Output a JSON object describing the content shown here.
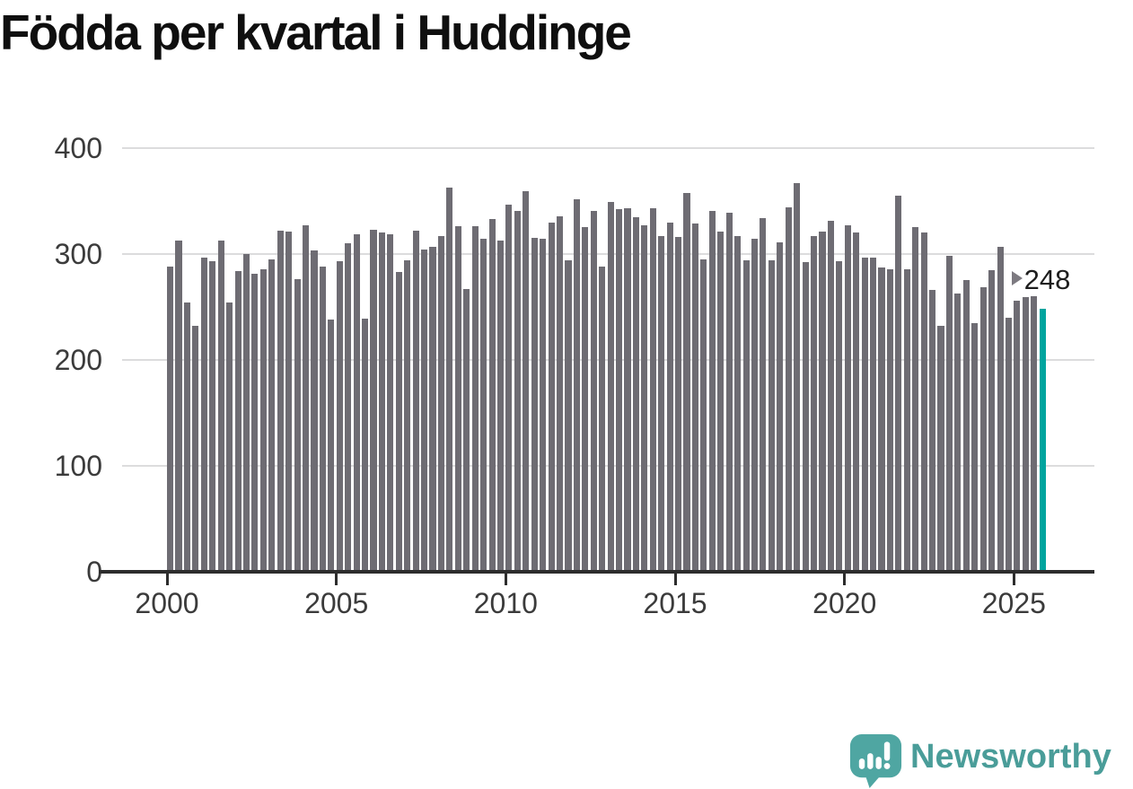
{
  "title": "Födda per kvartal i Huddinge",
  "annotation": {
    "text": "248",
    "arrow_icon": "right-arrowhead"
  },
  "footer": {
    "brand": "Newsworthy",
    "logo_icon": "newsworthy-speech-bubble-bar-chart-icon"
  },
  "colors": {
    "bar": "#6e6c73",
    "highlight": "#00a49e",
    "gridline": "#dcdcdd",
    "axis": "#2d2d2d",
    "title_text": "#0f0f0f",
    "tick_text": "#3b3b3b",
    "brand_teal": "#4a9d99",
    "logo_fill": "#4fa6a2"
  },
  "chart_data": {
    "type": "bar",
    "title": "Födda per kvartal i Huddinge",
    "x": {
      "start": "2000-Q1",
      "end": "2025-Q4",
      "step": "quarter",
      "count": 104
    },
    "values": [
      288,
      313,
      254,
      232,
      297,
      293,
      313,
      254,
      284,
      300,
      281,
      286,
      295,
      322,
      321,
      276,
      327,
      303,
      288,
      238,
      293,
      310,
      319,
      239,
      323,
      320,
      319,
      283,
      294,
      322,
      304,
      307,
      317,
      363,
      326,
      267,
      326,
      314,
      333,
      313,
      347,
      341,
      359,
      315,
      314,
      330,
      336,
      294,
      352,
      325,
      341,
      288,
      349,
      342,
      343,
      335,
      327,
      343,
      317,
      330,
      316,
      358,
      329,
      295,
      341,
      321,
      339,
      317,
      294,
      314,
      334,
      294,
      311,
      344,
      367,
      292,
      317,
      321,
      331,
      293,
      327,
      320,
      297,
      297,
      287,
      286,
      355,
      286,
      325,
      320,
      266,
      232,
      298,
      263,
      275,
      235,
      269,
      285,
      307,
      240,
      256,
      259,
      260,
      248
    ],
    "highlight": {
      "index": 103,
      "period": "2025-Q4",
      "value": 248,
      "label": "248"
    },
    "yticks": [
      0,
      100,
      200,
      300,
      400
    ],
    "xticks": [
      "2000",
      "2005",
      "2010",
      "2015",
      "2020",
      "2025"
    ],
    "ylim": [
      0,
      400
    ],
    "grid": "horizontal",
    "legend": "none"
  }
}
